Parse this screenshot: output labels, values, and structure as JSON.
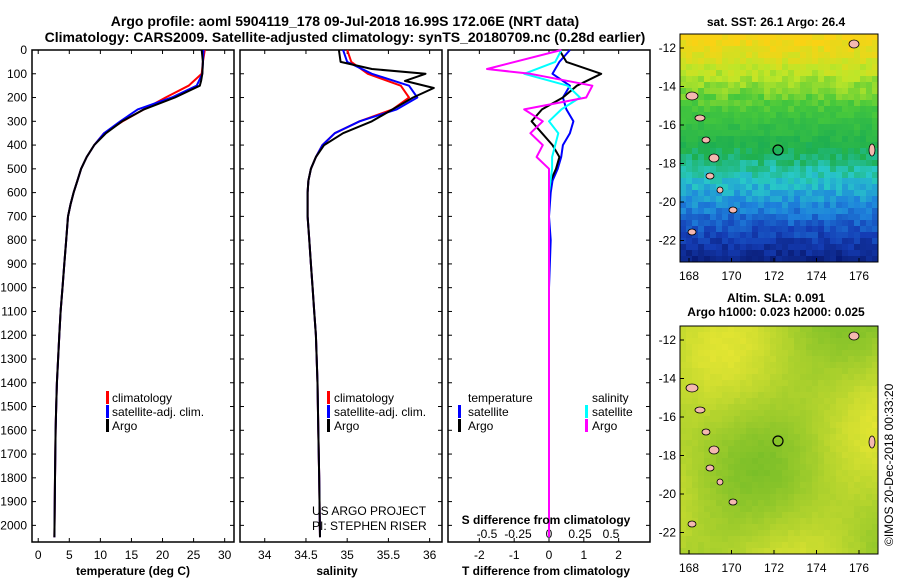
{
  "header": {
    "title_line1": "Argo profile: aoml 5904119_178 09-Jul-2018 16.99S 172.06E (NRT data)",
    "title_line2": "Climatology: CARS2009. Satellite-adjusted climatology: synTS_20180709.nc (0.28d earlier)"
  },
  "colors": {
    "climatology": "#ff0000",
    "satellite": "#0000ff",
    "argo": "#000000",
    "sat_s": "#00ffff",
    "argo_s": "#ff00ff"
  },
  "depth_axis": {
    "ticks": [
      "0",
      "100",
      "200",
      "300",
      "400",
      "500",
      "600",
      "700",
      "800",
      "900",
      "1000",
      "1100",
      "1200",
      "1300",
      "1400",
      "1500",
      "1600",
      "1700",
      "1800",
      "1900",
      "2000"
    ],
    "ylim": [
      0,
      2070
    ]
  },
  "chart_data": [
    {
      "type": "line",
      "id": "temperature",
      "xlabel": "temperature (deg C)",
      "xlim": [
        -1,
        31.5
      ],
      "xticks": [
        "0",
        "5",
        "10",
        "15",
        "20",
        "25",
        "30"
      ],
      "ylim": [
        0,
        2070
      ],
      "series": [
        {
          "name": "climatology",
          "color": "#ff0000",
          "x": [
            26.8,
            26.5,
            26.3,
            24.2,
            20.5,
            17.0,
            13.6,
            10.6,
            9.0,
            7.8,
            6.9,
            6.3,
            5.7,
            5.2,
            4.8,
            4.5,
            4.2,
            3.9,
            3.6,
            3.4,
            3.2,
            3.0,
            2.9,
            2.8,
            2.7,
            2.6
          ],
          "y": [
            0,
            50,
            100,
            150,
            200,
            250,
            300,
            350,
            400,
            450,
            500,
            550,
            600,
            650,
            700,
            800,
            900,
            1000,
            1100,
            1200,
            1300,
            1400,
            1500,
            1600,
            1800,
            2050
          ]
        },
        {
          "name": "satellite-adj. clim.",
          "color": "#0000ff",
          "x": [
            26.6,
            26.5,
            26.4,
            25.5,
            21.5,
            16.0,
            13.2,
            10.6,
            9.0,
            7.8,
            6.9,
            6.3,
            5.7,
            5.2,
            4.8,
            4.5,
            4.2,
            3.9,
            3.6,
            3.4,
            3.2,
            3.0,
            2.9,
            2.8,
            2.7,
            2.6
          ],
          "y": [
            0,
            50,
            100,
            150,
            200,
            250,
            300,
            350,
            400,
            450,
            500,
            550,
            600,
            650,
            700,
            800,
            900,
            1000,
            1100,
            1200,
            1300,
            1400,
            1500,
            1600,
            1800,
            2050
          ]
        },
        {
          "name": "Argo",
          "color": "#000000",
          "x": [
            26.3,
            26.5,
            26.4,
            26.2,
            26.0,
            22.0,
            17.0,
            13.5,
            10.9,
            9.0,
            7.8,
            6.9,
            6.3,
            5.7,
            5.2,
            4.8,
            4.5,
            4.2,
            3.9,
            3.6,
            3.4,
            3.2,
            3.0,
            2.9,
            2.8,
            2.7,
            2.6
          ],
          "y": [
            0,
            50,
            100,
            130,
            150,
            200,
            250,
            300,
            350,
            400,
            450,
            500,
            550,
            600,
            650,
            700,
            800,
            900,
            1000,
            1100,
            1200,
            1300,
            1400,
            1500,
            1600,
            1800,
            2050
          ]
        }
      ],
      "legend": [
        "climatology",
        "satellite-adj. clim.",
        "Argo"
      ]
    },
    {
      "type": "line",
      "id": "salinity",
      "xlabel": "salinity",
      "xlim": [
        33.7,
        36.15
      ],
      "xticks": [
        "34",
        "34.5",
        "35",
        "35.5",
        "36"
      ],
      "ylim": [
        0,
        2070
      ],
      "series": [
        {
          "name": "climatology",
          "color": "#ff0000",
          "x": [
            35.0,
            35.05,
            35.25,
            35.65,
            35.75,
            35.55,
            35.15,
            34.85,
            34.7,
            34.62,
            34.56,
            34.53,
            34.52,
            34.52,
            34.54,
            34.56,
            34.58,
            34.6,
            34.62,
            34.64,
            34.65,
            34.66,
            34.67
          ],
          "y": [
            0,
            50,
            100,
            150,
            200,
            250,
            300,
            350,
            400,
            450,
            500,
            550,
            600,
            700,
            800,
            900,
            1000,
            1100,
            1200,
            1400,
            1600,
            1800,
            2050
          ]
        },
        {
          "name": "satellite-adj. clim.",
          "color": "#0000ff",
          "x": [
            34.95,
            35.0,
            35.3,
            35.75,
            35.85,
            35.6,
            35.15,
            34.85,
            34.7,
            34.62,
            34.56,
            34.53,
            34.52,
            34.52,
            34.54,
            34.56,
            34.58,
            34.6,
            34.62,
            34.64,
            34.65,
            34.66,
            34.67
          ],
          "y": [
            0,
            50,
            100,
            150,
            200,
            250,
            300,
            350,
            400,
            450,
            500,
            550,
            600,
            700,
            800,
            900,
            1000,
            1100,
            1200,
            1400,
            1600,
            1800,
            2050
          ]
        },
        {
          "name": "Argo",
          "color": "#000000",
          "x": [
            34.9,
            34.92,
            35.3,
            35.95,
            35.7,
            36.05,
            35.8,
            35.3,
            34.95,
            34.72,
            34.62,
            34.56,
            34.53,
            34.52,
            34.52,
            34.54,
            34.56,
            34.58,
            34.6,
            34.62,
            34.64,
            34.65,
            34.66,
            34.67
          ],
          "y": [
            0,
            50,
            80,
            100,
            130,
            160,
            200,
            300,
            350,
            400,
            450,
            500,
            550,
            600,
            700,
            800,
            900,
            1000,
            1100,
            1200,
            1400,
            1600,
            1800,
            2050
          ]
        }
      ],
      "legend": [
        "climatology",
        "satellite-adj. clim.",
        "Argo"
      ]
    },
    {
      "type": "line",
      "id": "difference",
      "xlabel": "T difference from climatology",
      "xlabel2": "S difference from climatology",
      "xlim": [
        -2.9,
        2.9
      ],
      "xticks": [
        "-2",
        "-1",
        "0",
        "1",
        "2"
      ],
      "xticks2": [
        "-0.5",
        "-0.25",
        "0",
        "0.25",
        "0.5"
      ],
      "ylim": [
        0,
        2070
      ],
      "series": [
        {
          "name": "satellite",
          "group": "temperature",
          "color": "#0000ff",
          "x": [
            0.6,
            0.3,
            0.1,
            0.6,
            0.4,
            0.5,
            0.7,
            0.6,
            0.4,
            0.35,
            0.25,
            0.1,
            0.05,
            0.0,
            0.05,
            0.0,
            0.0
          ],
          "y": [
            0,
            50,
            100,
            150,
            200,
            250,
            300,
            350,
            400,
            450,
            500,
            550,
            600,
            700,
            800,
            1000,
            2050
          ]
        },
        {
          "name": "Argo",
          "group": "temperature",
          "color": "#000000",
          "x": [
            0.3,
            0.5,
            1.5,
            0.8,
            0.4,
            -0.2,
            -0.5,
            -0.2,
            0.1,
            0.3,
            0.2,
            0.05,
            0.0,
            0.0,
            0.0,
            0.0
          ],
          "y": [
            0,
            50,
            100,
            150,
            200,
            250,
            300,
            350,
            400,
            450,
            500,
            550,
            600,
            700,
            1000,
            2050
          ]
        },
        {
          "name": "satellite",
          "group": "salinity",
          "color": "#00ffff",
          "x": [
            0.2,
            0.1,
            -0.4,
            0.3,
            0.5,
            0.2,
            0.0,
            0.15,
            0.1,
            0.05,
            0.05,
            0.0,
            0.0,
            0.0
          ],
          "y": [
            0,
            50,
            100,
            150,
            200,
            250,
            300,
            350,
            400,
            450,
            500,
            600,
            800,
            2050
          ]
        },
        {
          "name": "Argo",
          "group": "salinity",
          "color": "#ff00ff",
          "x": [
            0.2,
            -1.0,
            -0.3,
            0.7,
            0.6,
            -0.4,
            -0.1,
            -0.3,
            -0.1,
            -0.2,
            0.0,
            0.0
          ],
          "y": [
            0,
            80,
            100,
            150,
            200,
            250,
            300,
            350,
            400,
            450,
            500,
            2050
          ]
        }
      ],
      "legend_headers": [
        "temperature",
        "salinity"
      ]
    }
  ],
  "map_top": {
    "title": "sat. SST: 26.1 Argo: 26.4",
    "yticks": [
      "-12",
      "-14",
      "-16",
      "-18",
      "-20",
      "-22"
    ],
    "xticks": [
      "168",
      "170",
      "172",
      "174",
      "176"
    ]
  },
  "map_bottom": {
    "title1": "Altim. SLA: 0.091",
    "title2": "Argo h1000: 0.023 h2000: 0.025",
    "yticks": [
      "-12",
      "-14",
      "-16",
      "-18",
      "-20",
      "-22"
    ],
    "xticks": [
      "168",
      "170",
      "172",
      "174",
      "176"
    ]
  },
  "credits": {
    "project": "US ARGO PROJECT",
    "pi": "PI: STEPHEN RISER",
    "stamp": "©IMOS 20-Dec-2018 00:33:20"
  }
}
